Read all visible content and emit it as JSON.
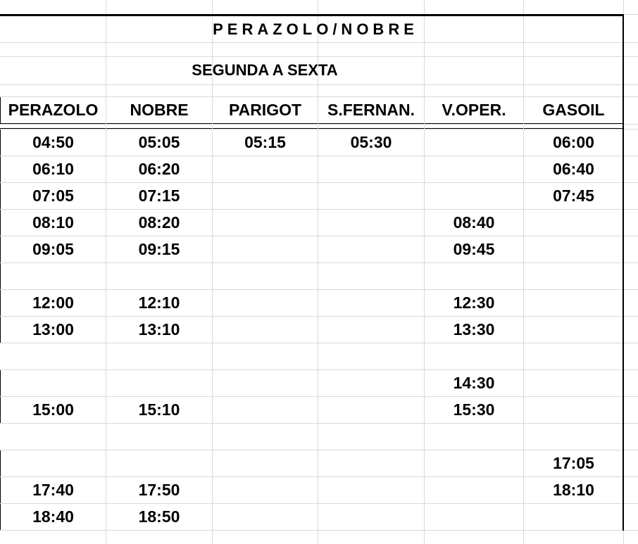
{
  "title": "PERAZOLO/NOBRE",
  "subtitle": "SEGUNDA A SEXTA",
  "columns": [
    "PERAZOLO",
    "NOBRE",
    "PARIGOT",
    "S.FERNAN.",
    "V.OPER.",
    "GASOIL"
  ],
  "rows": [
    {
      "type": "data",
      "cells": [
        "04:50",
        "05:05",
        "05:15",
        "05:30",
        "",
        "06:00"
      ]
    },
    {
      "type": "data",
      "cells": [
        "06:10",
        "06:20",
        "",
        "",
        "",
        "06:40"
      ]
    },
    {
      "type": "data",
      "cells": [
        "07:05",
        "07:15",
        "",
        "",
        "",
        "07:45"
      ]
    },
    {
      "type": "data",
      "cells": [
        "08:10",
        "08:20",
        "",
        "",
        "08:40",
        ""
      ]
    },
    {
      "type": "data",
      "cells": [
        "09:05",
        "09:15",
        "",
        "",
        "09:45",
        ""
      ]
    },
    {
      "type": "gap1",
      "cells": [
        "",
        ""
      ]
    },
    {
      "type": "data",
      "cells": [
        "12:00",
        "12:10",
        "",
        "",
        "12:30",
        ""
      ]
    },
    {
      "type": "data",
      "cells": [
        "13:00",
        "13:10",
        "",
        "",
        "13:30",
        ""
      ]
    },
    {
      "type": "gap",
      "cells": []
    },
    {
      "type": "data",
      "cells": [
        "",
        "",
        "",
        "",
        "14:30",
        ""
      ]
    },
    {
      "type": "data",
      "cells": [
        "15:00",
        "15:10",
        "",
        "",
        "15:30",
        ""
      ]
    },
    {
      "type": "gap",
      "cells": []
    },
    {
      "type": "data",
      "cells": [
        "",
        "",
        "",
        "",
        "",
        "17:05"
      ]
    },
    {
      "type": "data",
      "cells": [
        "17:40",
        "17:50",
        "",
        "",
        "",
        "18:10"
      ]
    },
    {
      "type": "tail",
      "cells": [
        "18:40",
        "18:50",
        ""
      ]
    }
  ]
}
